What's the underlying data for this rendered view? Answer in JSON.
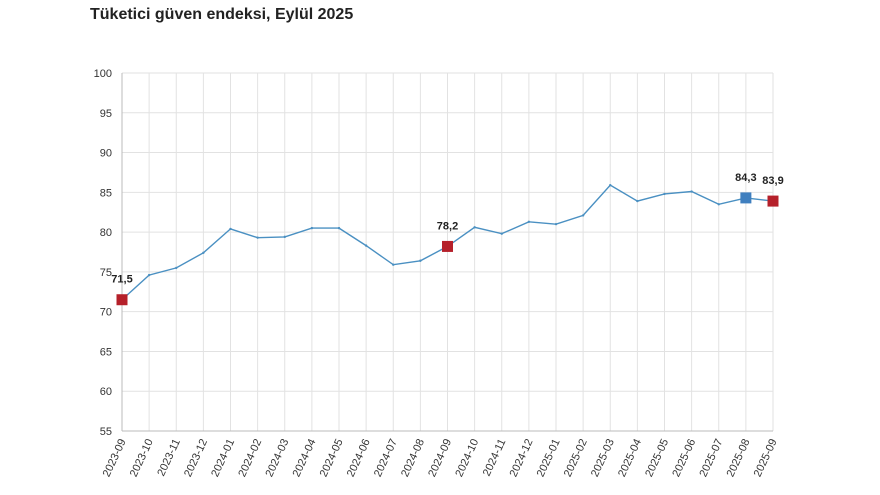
{
  "chart_data": {
    "type": "line",
    "title": "Tüketici güven endeksi, Eylül 2025",
    "xlabel": "",
    "ylabel": "",
    "ylim": [
      55,
      100
    ],
    "yticks": [
      "55",
      "60",
      "65",
      "70",
      "75",
      "80",
      "85",
      "90",
      "95",
      "100"
    ],
    "grid": true,
    "categories": [
      "2023-09",
      "2023-10",
      "2023-11",
      "2023-12",
      "2024-01",
      "2024-02",
      "2024-03",
      "2024-04",
      "2024-05",
      "2024-06",
      "2024-07",
      "2024-08",
      "2024-09",
      "2024-10",
      "2024-11",
      "2024-12",
      "2025-01",
      "2025-02",
      "2025-03",
      "2025-04",
      "2025-05",
      "2025-06",
      "2025-07",
      "2025-08",
      "2025-09"
    ],
    "series": [
      {
        "values": [
          71.5,
          74.6,
          75.5,
          77.4,
          80.4,
          79.3,
          79.4,
          80.5,
          80.5,
          78.3,
          75.9,
          76.4,
          78.2,
          80.6,
          79.8,
          81.3,
          81.0,
          82.1,
          85.9,
          83.9,
          84.8,
          85.1,
          83.5,
          84.3,
          83.9
        ],
        "color": "#4a90c2"
      }
    ],
    "highlighted_points": [
      {
        "category": "2023-09",
        "value": 71.5,
        "label": "71,5",
        "color": "#b5202a"
      },
      {
        "category": "2024-09",
        "value": 78.2,
        "label": "78,2",
        "color": "#b5202a"
      },
      {
        "category": "2025-08",
        "value": 84.3,
        "label": "84,3",
        "color": "#3f7fbf"
      },
      {
        "category": "2025-09",
        "value": 83.9,
        "label": "83,9",
        "color": "#b5202a"
      }
    ]
  }
}
